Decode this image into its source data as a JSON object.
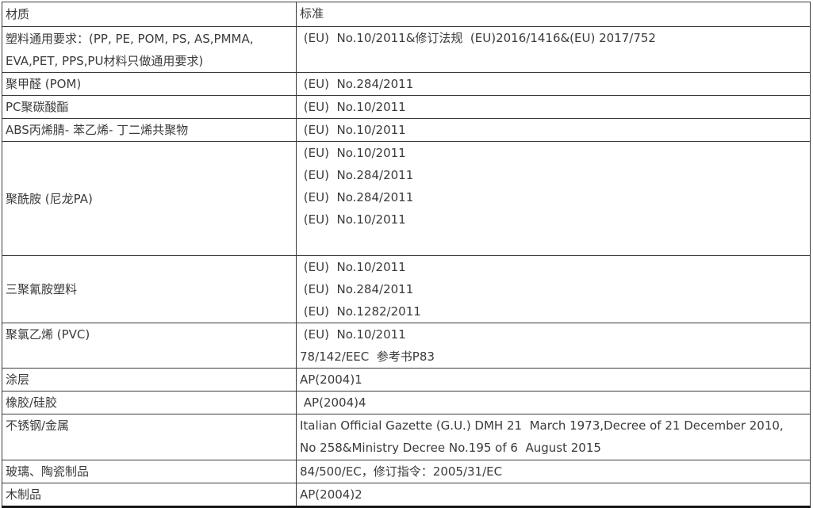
{
  "page": {
    "background": "#ffffff",
    "border_color": "#3c3c3c",
    "bottom_border_color": "#151515",
    "text_color": "#3a3a3a"
  },
  "table": {
    "columns": [
      "材质",
      "标准"
    ],
    "rows": [
      {
        "material": "塑料通用要求：(PP, PE, POM, PS, AS,PMMA,\nEVA,PET, PPS,PU材料只做通用要求)",
        "standard": " (EU)  No.10/2011&修订法规  (EU)2016/1416&(EU) 2017/752"
      },
      {
        "material": "聚甲醛 (POM)",
        "standard": " (EU)  No.284/2011"
      },
      {
        "material": "PC聚碳酸酯",
        "standard": " (EU)  No.10/2011"
      },
      {
        "material": "ABS丙烯腈- 苯乙烯- 丁二烯共聚物",
        "standard": " (EU)  No.10/2011"
      },
      {
        "material": "聚酰胺 (尼龙PA)",
        "standard": " (EU)  No.10/2011\n (EU)  No.284/2011\n (EU)  No.284/2011\n (EU)  No.10/2011"
      },
      {
        "material": "三聚氰胺塑料",
        "standard": " (EU)  No.10/2011\n (EU)  No.284/2011\n (EU)  No.1282/2011"
      },
      {
        "material": "聚氯乙烯 (PVC)",
        "standard": " (EU)  No.10/2011\n78/142/EEC  参考书P83"
      },
      {
        "material": "涂层",
        "standard": "AP(2004)1"
      },
      {
        "material": "橡胶/硅胶",
        "standard": " AP(2004)4"
      },
      {
        "material": "不锈钢/金属",
        "standard": "Italian Official Gazette (G.U.) DMH 21  March 1973,Decree of 21 December 2010,\nNo 258&Ministry Decree No.195 of 6  August 2015"
      },
      {
        "material": "玻璃、陶瓷制品",
        "standard": "84/500/EC，修订指令：2005/31/EC"
      },
      {
        "material": "木制品",
        "standard": "AP(2004)2"
      }
    ]
  }
}
